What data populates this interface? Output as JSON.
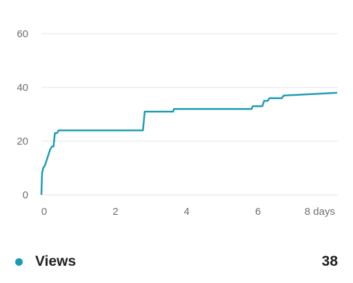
{
  "chart_data": {
    "type": "line",
    "title": "",
    "xlabel": "",
    "ylabel": "",
    "xlim": [
      0,
      8.3
    ],
    "ylim": [
      0,
      60
    ],
    "grid": true,
    "x_ticks": [
      {
        "value": 0,
        "label": "0"
      },
      {
        "value": 2,
        "label": "2"
      },
      {
        "value": 4,
        "label": "4"
      },
      {
        "value": 6,
        "label": "6"
      },
      {
        "value": 8,
        "label": "8 days"
      }
    ],
    "y_ticks": [
      {
        "value": 0,
        "label": "0"
      },
      {
        "value": 20,
        "label": "20"
      },
      {
        "value": 40,
        "label": "40"
      },
      {
        "value": 60,
        "label": "60"
      }
    ],
    "series": [
      {
        "name": "Views",
        "color": "#1a9bb5",
        "x": [
          0,
          0.02,
          0.05,
          0.1,
          0.15,
          0.2,
          0.25,
          0.3,
          0.34,
          0.38,
          0.4,
          0.44,
          0.48,
          2.85,
          2.9,
          3.7,
          3.72,
          5.9,
          5.93,
          6.2,
          6.25,
          6.35,
          6.4,
          6.75,
          6.8,
          8.3
        ],
        "y": [
          0,
          8,
          10,
          11,
          13,
          15,
          17,
          18,
          18,
          23,
          23,
          23,
          24,
          24,
          31,
          31,
          32,
          32,
          33,
          33,
          35,
          35,
          36,
          36,
          37,
          38
        ]
      }
    ],
    "legend": "bottom",
    "legend_entries": [
      {
        "name": "Views",
        "total": "38",
        "color": "#1a9bb5"
      }
    ]
  }
}
